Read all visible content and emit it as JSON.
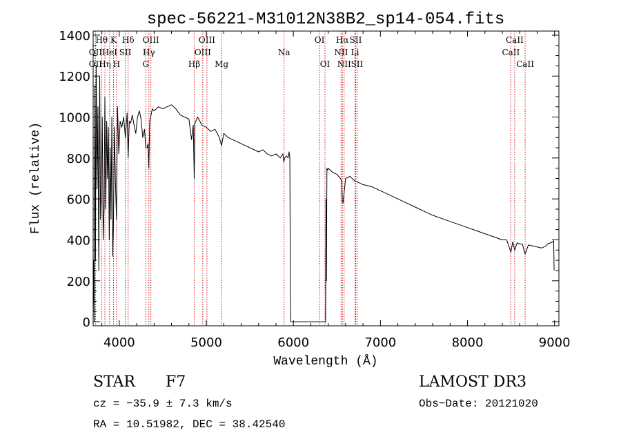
{
  "chart_data": {
    "type": "line",
    "title": "spec-56221-M31012N38B2_sp14-054.fits",
    "xlabel": "Wavelength (Å)",
    "ylabel": "Flux (relative)",
    "xlim": [
      3700,
      9050
    ],
    "ylim": [
      -20,
      1420
    ],
    "xticks": [
      4000,
      5000,
      6000,
      7000,
      8000,
      9000
    ],
    "yticks": [
      0,
      200,
      400,
      600,
      800,
      1000,
      1200,
      1400
    ],
    "grid": false,
    "series": [
      {
        "name": "flux",
        "color": "#000000",
        "x": [
          3700,
          3705,
          3712,
          3720,
          3727,
          3735,
          3745,
          3755,
          3765,
          3775,
          3785,
          3795,
          3805,
          3815,
          3825,
          3835,
          3845,
          3855,
          3865,
          3875,
          3885,
          3895,
          3905,
          3915,
          3925,
          3933,
          3945,
          3955,
          3968,
          3980,
          3995,
          4010,
          4030,
          4050,
          4070,
          4090,
          4102,
          4115,
          4130,
          4150,
          4170,
          4190,
          4210,
          4230,
          4250,
          4270,
          4290,
          4305,
          4315,
          4320,
          4330,
          4340,
          4350,
          4360,
          4380,
          4400,
          4450,
          4500,
          4550,
          4600,
          4650,
          4700,
          4750,
          4800,
          4830,
          4850,
          4861,
          4870,
          4900,
          4950,
          5000,
          5050,
          5100,
          5150,
          5175,
          5200,
          5250,
          5300,
          5350,
          5400,
          5450,
          5500,
          5550,
          5600,
          5650,
          5700,
          5750,
          5800,
          5850,
          5880,
          5890,
          5900,
          5920,
          5940,
          5950,
          5960,
          5962,
          5965,
          5970,
          5975,
          5980,
          6000,
          6100,
          6200,
          6300,
          6360,
          6370,
          6375,
          6380,
          6385,
          6390,
          6400,
          6450,
          6500,
          6540,
          6555,
          6563,
          6570,
          6600,
          6650,
          6700,
          6750,
          6800,
          6900,
          7000,
          7100,
          7200,
          7300,
          7400,
          7500,
          7600,
          7700,
          7800,
          7900,
          8000,
          8100,
          8200,
          8300,
          8400,
          8450,
          8498,
          8520,
          8542,
          8570,
          8600,
          8630,
          8662,
          8700,
          8750,
          8800,
          8850,
          8900,
          8920,
          8950,
          8980,
          8990,
          8995
        ],
        "y": [
          50,
          300,
          0,
          1150,
          300,
          1250,
          650,
          1050,
          250,
          1200,
          500,
          650,
          1000,
          400,
          550,
          1100,
          550,
          980,
          700,
          950,
          400,
          850,
          500,
          1000,
          320,
          480,
          950,
          700,
          500,
          1050,
          820,
          980,
          950,
          1000,
          900,
          1020,
          800,
          980,
          970,
          1010,
          960,
          920,
          1000,
          1030,
          990,
          900,
          940,
          850,
          850,
          850,
          870,
          750,
          980,
          1000,
          1040,
          1030,
          1050,
          1040,
          1050,
          1060,
          1040,
          1010,
          1000,
          990,
          890,
          960,
          700,
          970,
          1000,
          960,
          950,
          930,
          940,
          900,
          860,
          920,
          900,
          890,
          880,
          870,
          860,
          850,
          840,
          830,
          840,
          820,
          810,
          820,
          800,
          820,
          780,
          800,
          810,
          800,
          830,
          800,
          500,
          100,
          0,
          0,
          0,
          0,
          0,
          0,
          0,
          0,
          0,
          600,
          200,
          750,
          740,
          750,
          730,
          720,
          700,
          690,
          590,
          580,
          700,
          710,
          690,
          680,
          670,
          660,
          640,
          620,
          600,
          580,
          560,
          540,
          520,
          505,
          490,
          475,
          460,
          445,
          430,
          415,
          400,
          400,
          340,
          390,
          350,
          385,
          380,
          380,
          330,
          375,
          370,
          365,
          360,
          370,
          380,
          385,
          390,
          395,
          250
        ]
      }
    ],
    "line_markers": [
      {
        "label": "OII",
        "x": 3727,
        "row": 2
      },
      {
        "label": "Hθ",
        "x": 3797,
        "row": 1
      },
      {
        "label": "OII",
        "x": 3727,
        "row": 3
      },
      {
        "label": "Hη",
        "x": 3835,
        "row": 3
      },
      {
        "label": "HeI",
        "x": 3889,
        "row": 2
      },
      {
        "label": "K",
        "x": 3934,
        "row": 1
      },
      {
        "label": "SII",
        "x": 4069,
        "row": 2
      },
      {
        "label": "H",
        "x": 3969,
        "row": 3
      },
      {
        "label": "Hδ",
        "x": 4102,
        "row": 1
      },
      {
        "label": "OIII",
        "x": 4363,
        "row": 1
      },
      {
        "label": "Hγ",
        "x": 4340,
        "row": 2
      },
      {
        "label": "G",
        "x": 4305,
        "row": 3
      },
      {
        "label": "Hβ",
        "x": 4861,
        "row": 3
      },
      {
        "label": "OIII",
        "x": 5007,
        "row": 1
      },
      {
        "label": "OIII",
        "x": 4959,
        "row": 2
      },
      {
        "label": "Mg",
        "x": 5175,
        "row": 3
      },
      {
        "label": "Na",
        "x": 5893,
        "row": 2
      },
      {
        "label": "OI",
        "x": 6300,
        "row": 1
      },
      {
        "label": "OI",
        "x": 6363,
        "row": 3
      },
      {
        "label": "Hα",
        "x": 6563,
        "row": 1
      },
      {
        "label": "NII",
        "x": 6548,
        "row": 2
      },
      {
        "label": "NII",
        "x": 6583,
        "row": 3
      },
      {
        "label": "SII",
        "x": 6716,
        "row": 1
      },
      {
        "label": "Li",
        "x": 6708,
        "row": 2
      },
      {
        "label": "SII",
        "x": 6731,
        "row": 3
      },
      {
        "label": "CaII",
        "x": 8542,
        "row": 1
      },
      {
        "label": "CaII",
        "x": 8498,
        "row": 2
      },
      {
        "label": "CaII",
        "x": 8662,
        "row": 3
      }
    ],
    "marker_color": "#d01010"
  },
  "info": {
    "object_class": "STAR",
    "subclass": "F7",
    "survey": "LAMOST DR3",
    "cz": "cz = −35.9 ± 7.3 km/s",
    "obs_date": "Obs−Date: 20121020",
    "coords": "RA =  10.51982, DEC =  38.42540"
  }
}
